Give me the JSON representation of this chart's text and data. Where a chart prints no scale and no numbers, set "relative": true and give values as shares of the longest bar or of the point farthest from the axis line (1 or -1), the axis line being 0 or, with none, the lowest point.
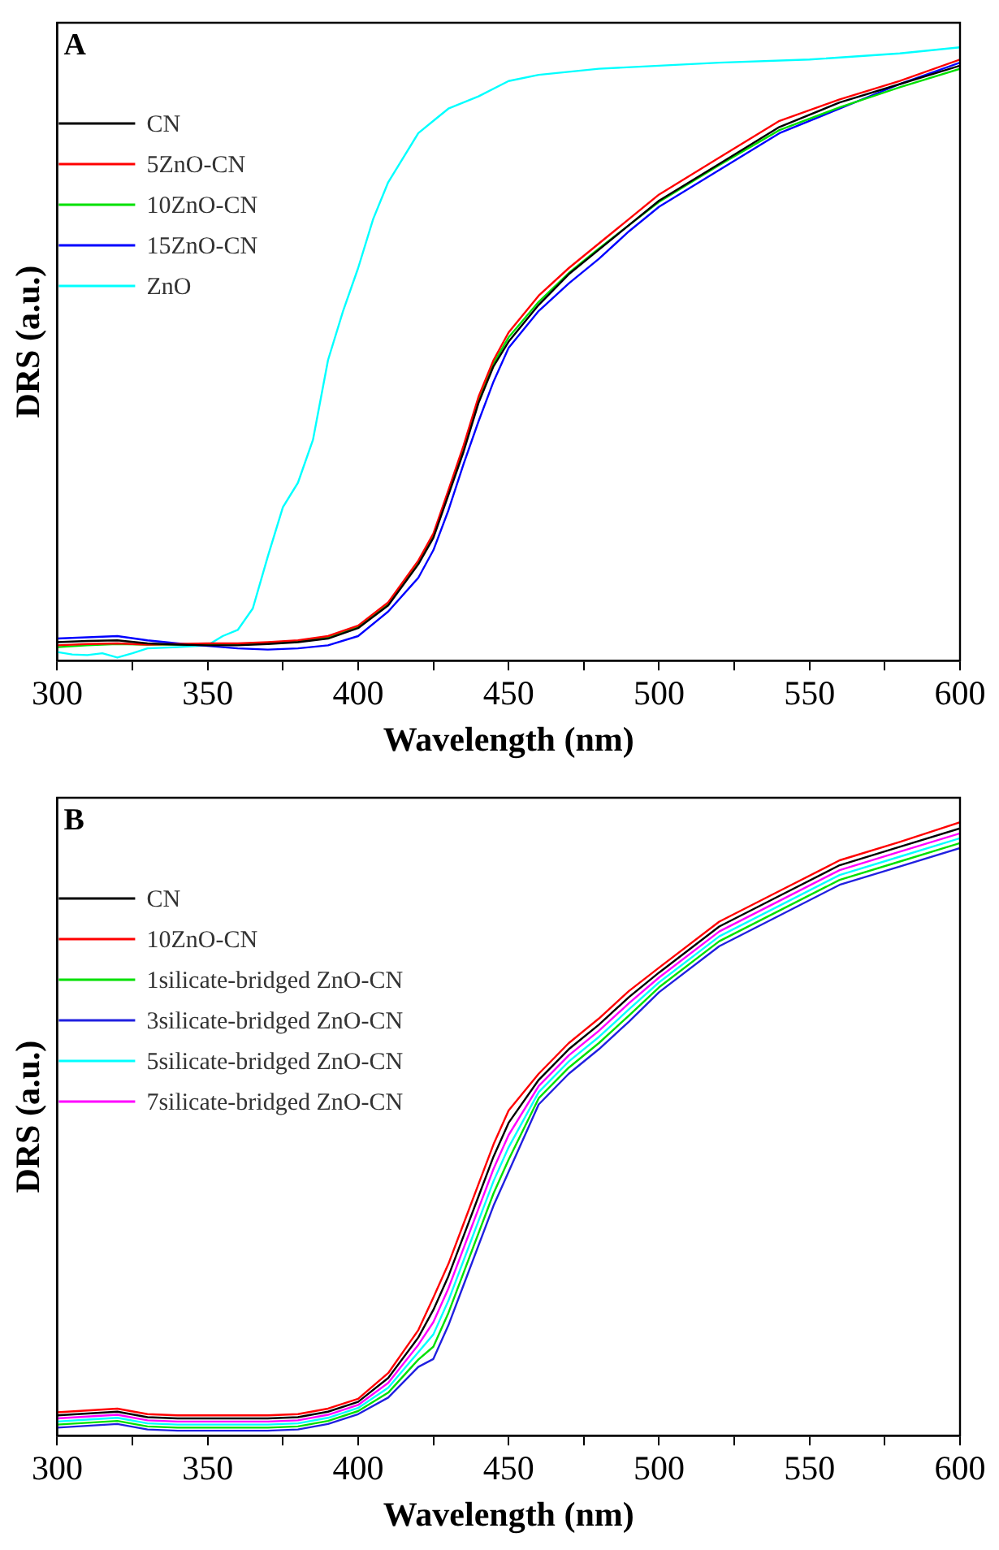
{
  "chart_data": [
    {
      "type": "line",
      "title": "A",
      "xlabel": "Wavelength (nm)",
      "ylabel": "DRS (a.u.)",
      "relative": true,
      "legend": "top left",
      "grid": false,
      "marker": "none",
      "line_style": "solid",
      "tick_labels": "x",
      "xlim": [
        300,
        600
      ],
      "xticks": [
        300,
        {
          "value": 325,
          "label": null
        },
        350,
        {
          "value": 375,
          "label": null
        },
        400,
        {
          "value": 425,
          "label": null
        },
        450,
        {
          "value": 475,
          "label": null
        },
        500,
        {
          "value": 525,
          "label": null
        },
        550,
        {
          "value": 575,
          "label": null
        },
        600
      ],
      "x": [
        300,
        310,
        320,
        330,
        340,
        350,
        360,
        370,
        380,
        390,
        400,
        410,
        420,
        425,
        430,
        435,
        440,
        445,
        450,
        460,
        470,
        480,
        490,
        500,
        520,
        540,
        560,
        580,
        600
      ],
      "series": [
        {
          "name": "CN",
          "color": "#000000",
          "values": [
            0.03,
            0.032,
            0.033,
            0.028,
            0.026,
            0.025,
            0.025,
            0.027,
            0.03,
            0.036,
            0.053,
            0.09,
            0.157,
            0.2,
            0.27,
            0.34,
            0.42,
            0.48,
            0.52,
            0.58,
            0.63,
            0.67,
            0.71,
            0.75,
            0.81,
            0.87,
            0.91,
            0.94,
            0.97
          ]
        },
        {
          "name": "5ZnO-CN",
          "color": "#ff0000",
          "values": [
            0.025,
            0.027,
            0.028,
            0.026,
            0.027,
            0.028,
            0.028,
            0.03,
            0.033,
            0.04,
            0.057,
            0.095,
            0.163,
            0.207,
            0.278,
            0.35,
            0.43,
            0.49,
            0.535,
            0.595,
            0.64,
            0.68,
            0.72,
            0.76,
            0.82,
            0.88,
            0.915,
            0.945,
            0.98
          ]
        },
        {
          "name": "10ZnO-CN",
          "color": "#00e000",
          "values": [
            0.022,
            0.025,
            0.027,
            0.026,
            0.026,
            0.027,
            0.027,
            0.029,
            0.032,
            0.038,
            0.055,
            0.092,
            0.16,
            0.203,
            0.274,
            0.345,
            0.425,
            0.485,
            0.527,
            0.585,
            0.632,
            0.672,
            0.71,
            0.748,
            0.808,
            0.865,
            0.902,
            0.935,
            0.965
          ]
        },
        {
          "name": "15ZnO-CN",
          "color": "#0000ff",
          "values": [
            0.036,
            0.038,
            0.04,
            0.033,
            0.028,
            0.024,
            0.02,
            0.018,
            0.02,
            0.025,
            0.04,
            0.08,
            0.135,
            0.18,
            0.245,
            0.32,
            0.39,
            0.455,
            0.51,
            0.57,
            0.615,
            0.655,
            0.7,
            0.74,
            0.8,
            0.86,
            0.9,
            0.94,
            0.975
          ]
        },
        {
          "name": "ZnO",
          "color": "#00ffff",
          "x": [
            300,
            305,
            310,
            315,
            320,
            325,
            330,
            340,
            350,
            355,
            360,
            365,
            370,
            375,
            380,
            385,
            390,
            395,
            400,
            405,
            410,
            415,
            420,
            425,
            430,
            440,
            450,
            460,
            480,
            500,
            520,
            550,
            580,
            600
          ],
          "values": [
            0.014,
            0.01,
            0.009,
            0.012,
            0.005,
            0.012,
            0.02,
            0.022,
            0.025,
            0.04,
            0.05,
            0.085,
            0.17,
            0.25,
            0.29,
            0.36,
            0.49,
            0.57,
            0.64,
            0.72,
            0.78,
            0.82,
            0.86,
            0.88,
            0.9,
            0.92,
            0.945,
            0.955,
            0.965,
            0.97,
            0.975,
            0.98,
            0.99,
            1
          ]
        }
      ]
    },
    {
      "type": "line",
      "title": "B",
      "xlabel": "Wavelength (nm)",
      "ylabel": "DRS (a.u.)",
      "relative": true,
      "legend": "top left",
      "grid": false,
      "marker": "none",
      "line_style": "solid",
      "tick_labels": "x",
      "xlim": [
        300,
        600
      ],
      "xticks": [
        300,
        {
          "value": 325,
          "label": null
        },
        350,
        {
          "value": 375,
          "label": null
        },
        400,
        {
          "value": 425,
          "label": null
        },
        450,
        {
          "value": 475,
          "label": null
        },
        500,
        {
          "value": 525,
          "label": null
        },
        550,
        {
          "value": 575,
          "label": null
        },
        600
      ],
      "x": [
        300,
        310,
        320,
        330,
        340,
        350,
        360,
        370,
        380,
        390,
        400,
        410,
        420,
        425,
        430,
        435,
        440,
        445,
        450,
        460,
        470,
        480,
        490,
        500,
        520,
        540,
        560,
        580,
        600
      ],
      "series": [
        {
          "name": "CN",
          "color": "#000000",
          "values": [
            0.033,
            0.036,
            0.039,
            0.03,
            0.028,
            0.028,
            0.028,
            0.028,
            0.03,
            0.039,
            0.055,
            0.094,
            0.16,
            0.205,
            0.26,
            0.325,
            0.39,
            0.455,
            0.51,
            0.58,
            0.63,
            0.67,
            0.715,
            0.755,
            0.83,
            0.88,
            0.93,
            0.96,
            0.99
          ]
        },
        {
          "name": "10ZnO-CN",
          "color": "#ff0000",
          "values": [
            0.038,
            0.041,
            0.044,
            0.035,
            0.033,
            0.033,
            0.033,
            0.033,
            0.035,
            0.044,
            0.06,
            0.102,
            0.172,
            0.225,
            0.28,
            0.345,
            0.41,
            0.475,
            0.53,
            0.59,
            0.64,
            0.68,
            0.725,
            0.763,
            0.838,
            0.888,
            0.938,
            0.968,
            1
          ]
        },
        {
          "name": "1silicate-bridged ZnO-CN",
          "color": "#00e000",
          "values": [
            0.018,
            0.021,
            0.024,
            0.015,
            0.013,
            0.013,
            0.013,
            0.013,
            0.015,
            0.024,
            0.04,
            0.07,
            0.124,
            0.145,
            0.2,
            0.265,
            0.33,
            0.395,
            0.45,
            0.55,
            0.6,
            0.64,
            0.685,
            0.731,
            0.806,
            0.856,
            0.906,
            0.936,
            0.966
          ]
        },
        {
          "name": "3silicate-bridged ZnO-CN",
          "color": "#2020e0",
          "values": [
            0.013,
            0.016,
            0.019,
            0.01,
            0.008,
            0.008,
            0.008,
            0.008,
            0.01,
            0.019,
            0.035,
            0.062,
            0.112,
            0.125,
            0.18,
            0.245,
            0.31,
            0.375,
            0.43,
            0.54,
            0.59,
            0.63,
            0.675,
            0.723,
            0.798,
            0.848,
            0.898,
            0.928,
            0.958
          ]
        },
        {
          "name": "5silicate-bridged ZnO-CN",
          "color": "#00ffff",
          "values": [
            0.023,
            0.026,
            0.029,
            0.02,
            0.018,
            0.018,
            0.018,
            0.018,
            0.02,
            0.029,
            0.045,
            0.078,
            0.136,
            0.165,
            0.22,
            0.285,
            0.35,
            0.415,
            0.47,
            0.56,
            0.61,
            0.65,
            0.695,
            0.739,
            0.814,
            0.864,
            0.914,
            0.944,
            0.974
          ]
        },
        {
          "name": "7silicate-bridged ZnO-CN",
          "color": "#ff00ff",
          "values": [
            0.028,
            0.031,
            0.034,
            0.025,
            0.023,
            0.023,
            0.023,
            0.023,
            0.025,
            0.034,
            0.05,
            0.086,
            0.148,
            0.185,
            0.24,
            0.305,
            0.37,
            0.435,
            0.49,
            0.57,
            0.62,
            0.66,
            0.705,
            0.747,
            0.822,
            0.872,
            0.922,
            0.952,
            0.982
          ]
        }
      ]
    }
  ]
}
